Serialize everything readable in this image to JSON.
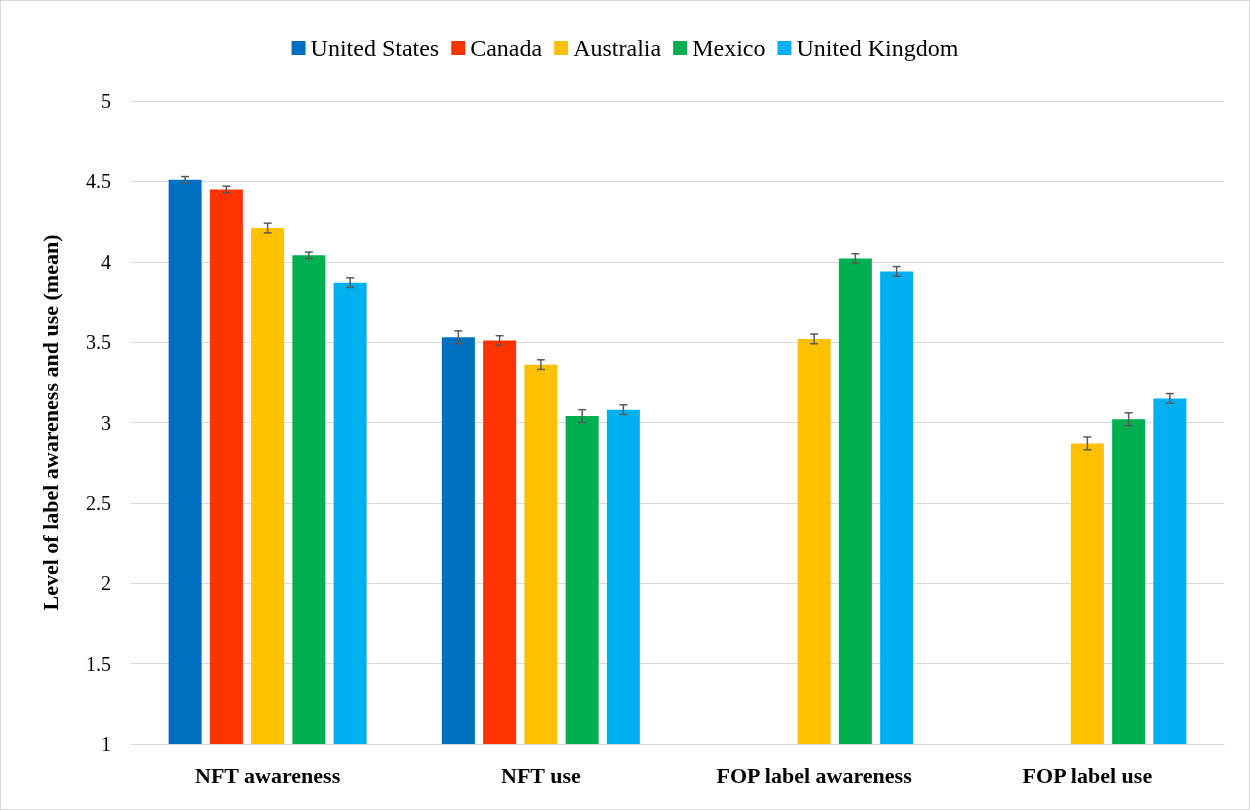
{
  "chart_data": {
    "type": "bar",
    "ylabel": "Level of label awareness and use (mean)",
    "categories": [
      "NFT awareness",
      "NFT use",
      "FOP label awareness",
      "FOP label use"
    ],
    "series": [
      {
        "name": "United States",
        "color": "#0070c0",
        "values": [
          4.51,
          3.53,
          null,
          null
        ],
        "errors": [
          0.02,
          0.04,
          null,
          null
        ]
      },
      {
        "name": "Canada",
        "color": "#ff3300",
        "values": [
          4.45,
          3.51,
          null,
          null
        ],
        "errors": [
          0.02,
          0.03,
          null,
          null
        ]
      },
      {
        "name": "Australia",
        "color": "#ffc000",
        "values": [
          4.21,
          3.36,
          3.52,
          2.87
        ],
        "errors": [
          0.03,
          0.03,
          0.03,
          0.04
        ]
      },
      {
        "name": "Mexico",
        "color": "#00b050",
        "values": [
          4.04,
          3.04,
          4.02,
          3.02
        ],
        "errors": [
          0.02,
          0.04,
          0.03,
          0.04
        ]
      },
      {
        "name": "United Kingdom",
        "color": "#00b0f0",
        "values": [
          3.87,
          3.08,
          3.94,
          3.15
        ],
        "errors": [
          0.03,
          0.03,
          0.03,
          0.03
        ]
      }
    ],
    "ylim": [
      1,
      5
    ],
    "yticks": [
      1,
      1.5,
      2,
      2.5,
      3,
      3.5,
      4,
      4.5,
      5
    ],
    "grid": "y",
    "legend": "top"
  }
}
